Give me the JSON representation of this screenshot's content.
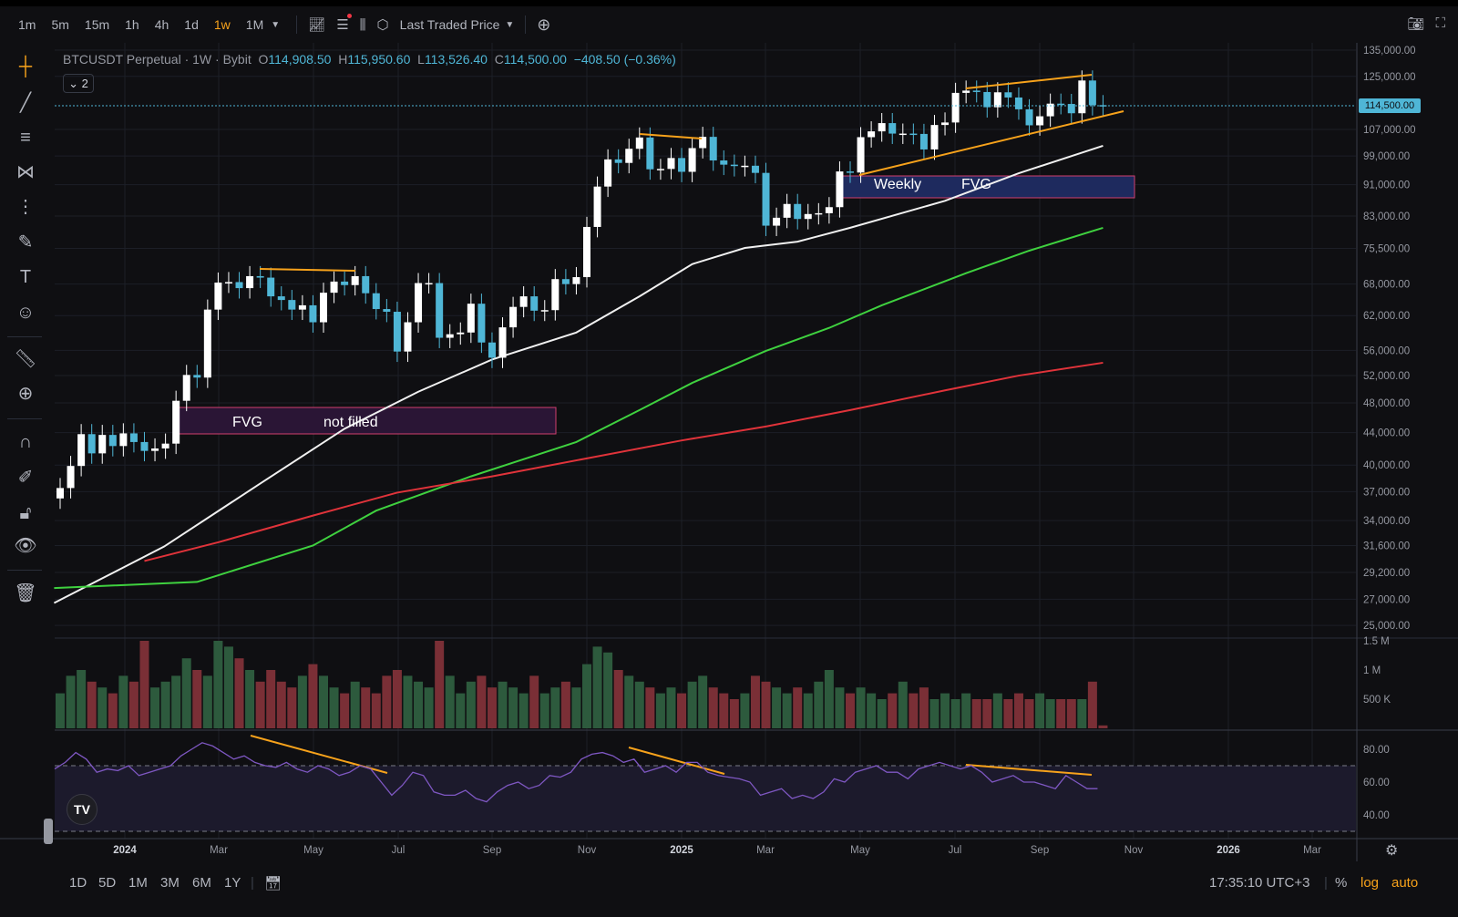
{
  "topbar": {
    "timeframes": [
      "1m",
      "5m",
      "15m",
      "1h",
      "4h",
      "1d",
      "1w",
      "1M"
    ],
    "active_timeframe": "1w",
    "price_source": "Last Traded Price"
  },
  "legend": {
    "symbol": "BTCUSDT Perpetual",
    "interval": "1W",
    "exchange": "Bybit",
    "open_label": "O",
    "open": "114,908.50",
    "high_label": "H",
    "high": "115,950.60",
    "low_label": "L",
    "low": "113,526.40",
    "close_label": "C",
    "close": "114,500.00",
    "change": "−408.50 (−0.36%)",
    "collapsed_count": "2"
  },
  "colors": {
    "up": "#ffffff",
    "down": "#4fb6d6",
    "ma_white": "#f0f0f0",
    "ma_green": "#3fd13f",
    "ma_red": "#e0333a",
    "drawing": "#f7a21b",
    "rsi": "#7e57c2",
    "fvg_pink": "#d23f6e",
    "fvg_blue": "#1e2a5e"
  },
  "annotations": {
    "fvg_lower_label1": "FVG",
    "fvg_lower_label2": "not filled",
    "fvg_upper_label1": "Weekly",
    "fvg_upper_label2": "FVG"
  },
  "price_axis": {
    "scale": "log",
    "ticks": [
      135000,
      125000,
      107000,
      99000,
      91000,
      83000,
      75500,
      68000,
      62000,
      56000,
      52000,
      48000,
      44000,
      40000,
      37000,
      34000,
      31600,
      29200,
      27000,
      25000
    ],
    "last_price": "114,500.00"
  },
  "volume_axis": {
    "ticks": [
      "1.5 M",
      "1 M",
      "500 K"
    ],
    "values": [
      1.5,
      1,
      0.5
    ]
  },
  "rsi_axis": {
    "ticks": [
      "80.00",
      "60.00",
      "40.00"
    ],
    "values": [
      80,
      60,
      40
    ],
    "bands": [
      70,
      30
    ]
  },
  "time_axis": {
    "labels": [
      "2024",
      "Mar",
      "May",
      "Jul",
      "Sep",
      "Nov",
      "2025",
      "Mar",
      "May",
      "Jul",
      "Sep",
      "Nov",
      "2026",
      "Mar"
    ]
  },
  "chart_data": {
    "type": "candlestick",
    "first_week": "2023-11-20",
    "closes": [
      37.4,
      39.9,
      43.8,
      41.4,
      43.7,
      42.3,
      43.9,
      42.8,
      41.7,
      42.0,
      42.6,
      48.3,
      52.1,
      51.7,
      63.1,
      68.3,
      68.4,
      67.2,
      69.6,
      69.3,
      65.6,
      64.9,
      63.1,
      63.9,
      60.8,
      66.3,
      68.5,
      67.8,
      69.6,
      66.2,
      63.2,
      62.7,
      55.8,
      60.8,
      68.2,
      68.2,
      58.1,
      58.7,
      59.0,
      64.2,
      57.3,
      54.8,
      59.9,
      63.6,
      65.6,
      62.9,
      63.0,
      69.0,
      68.0,
      69.4,
      80.4,
      90.5,
      98.0,
      97.0,
      101.1,
      104.5,
      95.2,
      95.3,
      98.4,
      94.5,
      101.3,
      104.7,
      97.7,
      96.5,
      96.1,
      96.2,
      94.2,
      80.7,
      82.6,
      86.0,
      82.3,
      83.5,
      83.7,
      85.2,
      94.6,
      94.3,
      104.6,
      106.4,
      109.0,
      105.7,
      105.7,
      105.6,
      100.9,
      108.4,
      109.2,
      119.1,
      119.9,
      119.4,
      114.2,
      119.3,
      117.5,
      113.5,
      108.3,
      111.2,
      115.4,
      115.3,
      112.2,
      123.5,
      114.9,
      114.5
    ],
    "close_unit": "thousand USDT",
    "moving_averages": [
      {
        "color_key": "ma_white",
        "points": [
          [
            "2023-11-16",
            26.7
          ],
          [
            "2024-01-28",
            31.5
          ],
          [
            "2024-04-01",
            37.9
          ],
          [
            "2024-05-27",
            44.5
          ],
          [
            "2024-07-15",
            49.6
          ],
          [
            "2024-09-02",
            54.5
          ],
          [
            "2024-10-28",
            59.0
          ],
          [
            "2024-12-09",
            65.6
          ],
          [
            "2025-01-13",
            72.1
          ],
          [
            "2025-02-17",
            75.6
          ],
          [
            "2025-03-24",
            77.0
          ],
          [
            "2025-04-28",
            80.2
          ],
          [
            "2025-06-30",
            86.8
          ],
          [
            "2025-08-18",
            94.1
          ],
          [
            "2025-10-13",
            102.0
          ]
        ]
      },
      {
        "color_key": "ma_green",
        "points": [
          [
            "2023-11-16",
            27.9
          ],
          [
            "2024-02-19",
            28.4
          ],
          [
            "2024-05-06",
            31.6
          ],
          [
            "2024-06-17",
            35.0
          ],
          [
            "2024-08-19",
            38.7
          ],
          [
            "2024-10-28",
            42.8
          ],
          [
            "2024-12-09",
            47.0
          ],
          [
            "2025-01-13",
            50.9
          ],
          [
            "2025-03-03",
            55.9
          ],
          [
            "2025-04-14",
            59.8
          ],
          [
            "2025-05-19",
            63.9
          ],
          [
            "2025-07-14",
            70.2
          ],
          [
            "2025-08-25",
            75.0
          ],
          [
            "2025-10-13",
            80.2
          ]
        ]
      },
      {
        "color_key": "ma_red",
        "points": [
          [
            "2024-01-15",
            30.2
          ],
          [
            "2024-03-04",
            31.9
          ],
          [
            "2024-05-06",
            34.5
          ],
          [
            "2024-07-01",
            36.9
          ],
          [
            "2024-09-02",
            38.7
          ],
          [
            "2024-11-04",
            40.8
          ],
          [
            "2025-01-06",
            43.0
          ],
          [
            "2025-03-03",
            44.8
          ],
          [
            "2025-04-28",
            47.0
          ],
          [
            "2025-06-30",
            49.8
          ],
          [
            "2025-08-18",
            52.0
          ],
          [
            "2025-10-13",
            54.0
          ]
        ]
      }
    ],
    "volume_millions": [
      0.6,
      0.9,
      1.0,
      0.8,
      0.7,
      0.6,
      0.9,
      0.8,
      1.5,
      0.7,
      0.8,
      0.9,
      1.2,
      1.0,
      0.9,
      1.5,
      1.4,
      1.2,
      1.0,
      0.8,
      1.0,
      0.8,
      0.7,
      0.9,
      1.1,
      0.9,
      0.7,
      0.6,
      0.8,
      0.7,
      0.6,
      0.9,
      1.0,
      0.9,
      0.8,
      0.7,
      1.5,
      0.9,
      0.6,
      0.8,
      0.9,
      0.7,
      0.8,
      0.7,
      0.6,
      0.9,
      0.6,
      0.7,
      0.8,
      0.7,
      1.1,
      1.4,
      1.3,
      1.0,
      0.9,
      0.8,
      0.7,
      0.6,
      0.7,
      0.6,
      0.8,
      0.9,
      0.7,
      0.6,
      0.5,
      0.6,
      0.9,
      0.8,
      0.7,
      0.6,
      0.7,
      0.6,
      0.8,
      1.0,
      0.7,
      0.6,
      0.7,
      0.6,
      0.5,
      0.6,
      0.8,
      0.6,
      0.7,
      0.5,
      0.6,
      0.5,
      0.6,
      0.5,
      0.5,
      0.6,
      0.5,
      0.6,
      0.5,
      0.6,
      0.5,
      0.5,
      0.5,
      0.5,
      0.8,
      0.05
    ],
    "rsi": [
      68,
      72,
      78,
      74,
      66,
      68,
      67,
      70,
      64,
      66,
      68,
      70,
      76,
      80,
      84,
      82,
      78,
      74,
      76,
      72,
      70,
      69,
      72,
      68,
      66,
      70,
      68,
      64,
      66,
      70,
      68,
      60,
      52,
      58,
      66,
      64,
      54,
      52,
      52,
      55,
      50,
      48,
      54,
      58,
      60,
      56,
      58,
      64,
      63,
      66,
      74,
      77,
      78,
      76,
      72,
      74,
      66,
      68,
      70,
      66,
      72,
      72,
      66,
      64,
      63,
      62,
      60,
      52,
      54,
      56,
      50,
      52,
      50,
      54,
      62,
      60,
      66,
      68,
      70,
      66,
      66,
      62,
      68,
      70,
      72,
      70,
      68,
      70,
      66,
      60,
      62,
      64,
      60,
      60,
      58,
      56,
      64,
      60,
      56,
      56
    ]
  },
  "bottombar": {
    "ranges": [
      "1D",
      "5D",
      "1M",
      "3M",
      "6M",
      "1Y"
    ],
    "clock": "17:35:10 UTC+3",
    "percent": "%",
    "log": "log",
    "auto": "auto"
  }
}
